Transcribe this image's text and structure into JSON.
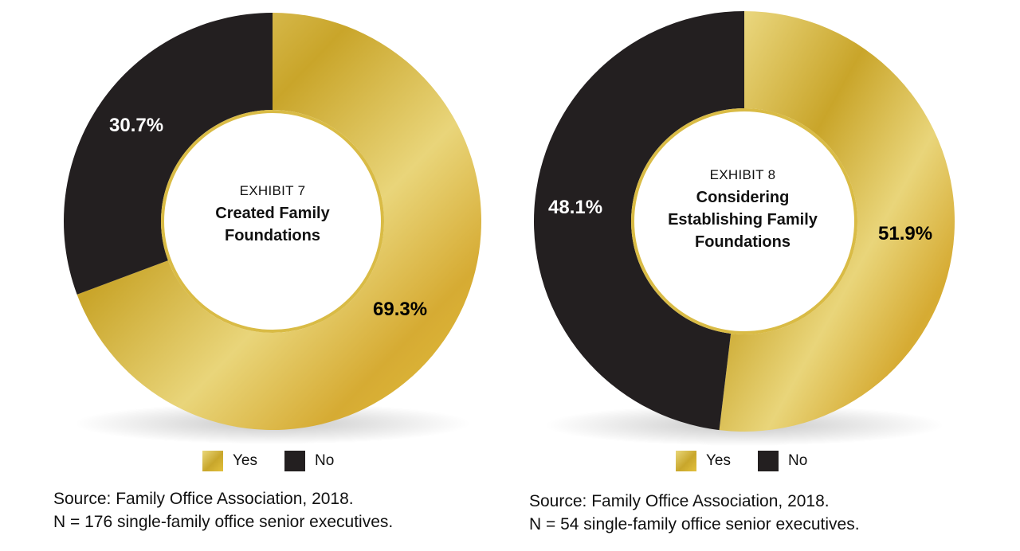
{
  "chart_data": [
    {
      "type": "pie",
      "exhibit": "EXHIBIT 7",
      "title": "Created Family Foundations",
      "categories": [
        "Yes",
        "No"
      ],
      "values": [
        69.3,
        30.7
      ],
      "labels": [
        "69.3%",
        "30.7%"
      ],
      "colors": [
        "#d4b037",
        "#231f20"
      ],
      "legend": [
        "Yes",
        "No"
      ],
      "legend_placement": "bottom",
      "source": "Source: Family Office Association, 2018.",
      "note": "N = 176 single-family office senior executives."
    },
    {
      "type": "pie",
      "exhibit": "EXHIBIT 8",
      "title": "Considering Establishing Family Foundations",
      "categories": [
        "Yes",
        "No"
      ],
      "values": [
        51.9,
        48.1
      ],
      "labels": [
        "51.9%",
        "48.1%"
      ],
      "colors": [
        "#d4b037",
        "#231f20"
      ],
      "legend": [
        "Yes",
        "No"
      ],
      "legend_placement": "bottom",
      "source": "Source: Family Office Association, 2018.",
      "note": "N = 54 single-family office senior executives."
    }
  ]
}
